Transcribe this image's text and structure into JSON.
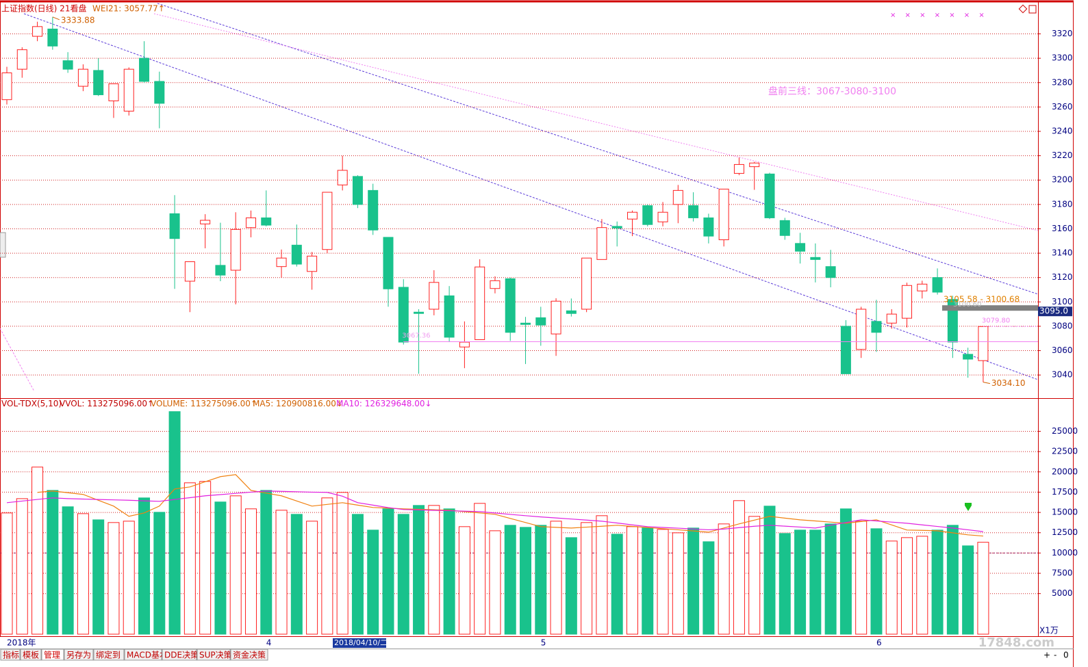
{
  "header": {
    "title": "上证指数(日线) 21看盘",
    "indicator": "WEI21: 3057.77↑",
    "marks": "× × × × × × ×"
  },
  "chart_data": [
    {
      "type": "candlestick",
      "open": [
        3266,
        3291,
        3318,
        3324,
        3298,
        3277,
        3290,
        3265,
        3256.6,
        3300,
        3281,
        3172.4,
        3117,
        3164,
        3130,
        3126,
        3161,
        3169,
        3129,
        3146.6,
        3125,
        3143,
        3196,
        3203,
        3191.5,
        3153,
        3112,
        3091.6,
        3094,
        3105,
        3063,
        3069,
        3111,
        3119,
        3082.6,
        3087,
        3073.7,
        3092.7,
        3094,
        3134.8,
        3162,
        3168,
        3179,
        3165.7,
        3180,
        3179,
        3169,
        3151,
        3205.5,
        3211,
        3205,
        3166.8,
        3148,
        3136.5,
        3129,
        3080,
        3061,
        3084,
        3082.6,
        3086.6,
        3109,
        3120,
        3102,
        3057,
        3051.8
      ],
      "high": [
        3293,
        3309,
        3330,
        3333.88,
        3305,
        3295,
        3300,
        3279,
        3292.5,
        3314,
        3289,
        3187.6,
        3133,
        3172,
        3165,
        3173.6,
        3175,
        3191.5,
        3143,
        3163.5,
        3141,
        3190,
        3220,
        3204,
        3197,
        3153,
        3118.6,
        3094,
        3126,
        3113,
        3084,
        3135,
        3121,
        3120,
        3087.7,
        3096,
        3103,
        3102.8,
        3136,
        3168,
        3166,
        3175,
        3180,
        3182,
        3196,
        3190,
        3172.4,
        3192.6,
        3218.5,
        3215,
        3206,
        3169,
        3156.7,
        3148,
        3142.7,
        3085,
        3096,
        3101.7,
        3094,
        3115.8,
        3117.4,
        3127.5,
        3105,
        3062.4,
        3079.8
      ],
      "low": [
        3262,
        3284,
        3314,
        3307,
        3288,
        3273,
        3269,
        3251,
        3253,
        3280,
        3242.5,
        3110.7,
        3091.6,
        3144,
        3117,
        3098,
        3153,
        3162,
        3120,
        3129,
        3110,
        3140,
        3191.5,
        3177,
        3155,
        3096,
        3065,
        3041,
        3089,
        3067,
        3045.6,
        3069,
        3107,
        3068,
        3049,
        3064,
        3055.7,
        3088,
        3091.6,
        3134.8,
        3145.5,
        3154,
        3162,
        3162,
        3164.6,
        3166,
        3148,
        3145.5,
        3204,
        3192,
        3168,
        3151,
        3131.5,
        3116,
        3112,
        3041,
        3054,
        3059,
        3078,
        3079,
        3102.8,
        3106,
        3054,
        3037.8,
        3034.1
      ],
      "close": [
        3288,
        3307,
        3326,
        3310,
        3291,
        3291,
        3270,
        3279,
        3291,
        3281,
        3263,
        3152,
        3133,
        3167,
        3122,
        3159.5,
        3169,
        3163,
        3136,
        3131,
        3137.6,
        3190,
        3208,
        3180,
        3159,
        3110.7,
        3067,
        3090.5,
        3116,
        3071,
        3067,
        3128.7,
        3117.4,
        3075,
        3081.5,
        3081,
        3100.6,
        3090.5,
        3136,
        3161,
        3160.6,
        3173.6,
        3163.5,
        3173.6,
        3191.5,
        3169,
        3154,
        3192.6,
        3212.8,
        3214,
        3169,
        3154.5,
        3141.6,
        3134.8,
        3120,
        3041,
        3094,
        3075,
        3090,
        3113.5,
        3114.6,
        3108,
        3067,
        3053,
        3079.8
      ],
      "up_color": "#ff2020",
      "down_color": "#19c28c",
      "ylim": [
        3021,
        3345
      ],
      "yticks": [
        3040,
        3060,
        3080,
        3100,
        3120,
        3140,
        3160,
        3180,
        3200,
        3220,
        3240,
        3260,
        3280,
        3300,
        3320
      ],
      "grid": true,
      "annotations": {
        "high": 3333.88,
        "low": {
          "value": 3034.1,
          "label": "3034.10"
        },
        "last": {
          "value": 3079.8,
          "label": "3079.80"
        },
        "line": 3067.36,
        "marker": {
          "value": 3095,
          "label": "3095.0"
        },
        "range_text": "3105.58 - 3100.68",
        "ghost_text": "3100.60",
        "note": "盘前三线：3067-3080-3100"
      }
    },
    {
      "type": "bar",
      "name": "VOL-TDX(5,10)",
      "header": "VVOL: 113275096.00↑",
      "categories": [
        "2018年",
        null,
        null,
        null,
        null,
        null,
        null,
        null,
        null,
        null,
        null,
        null,
        null,
        null,
        null,
        null,
        null,
        "4",
        null,
        null,
        null,
        null,
        null,
        null,
        null,
        null,
        null,
        null,
        null,
        null,
        null,
        null,
        null,
        null,
        null,
        "5",
        null,
        null,
        null,
        null,
        null,
        null,
        null,
        null,
        null,
        null,
        null,
        null,
        null,
        null,
        null,
        null,
        null,
        null,
        null,
        null,
        null,
        "6",
        null,
        null,
        null,
        null,
        null,
        null,
        null
      ],
      "series": [
        {
          "name": "VOLUME",
          "value_text": ": 113275096.00↑",
          "values": [
            14937,
            16700,
            20590,
            17720,
            15700,
            14850,
            14090,
            13755,
            13924,
            16793,
            15020,
            27426,
            18650,
            18820,
            16290,
            17046,
            15443,
            17720,
            15274,
            14768,
            13924,
            16793,
            17468,
            14768,
            12827,
            15443,
            14768,
            15865,
            15865,
            15443,
            13249,
            16118,
            12742,
            13418,
            13164,
            13418,
            13924,
            11899,
            13755,
            14599,
            12321,
            13249,
            13080,
            12911,
            12489,
            13080,
            11392,
            13586,
            16456,
            14515,
            15780,
            12405,
            12827,
            12827,
            13586,
            15443,
            13924,
            12996,
            11477,
            11899,
            12068,
            12827,
            13418,
            10886,
            11327.51
          ]
        },
        {
          "name": "MA5",
          "value_text": ": 120900816.00↓",
          "color": "#f08010",
          "values": [
            null,
            null,
            17470,
            17640,
            17430,
            17220,
            16500,
            15780,
            14520,
            14940,
            15780,
            17890,
            18140,
            18780,
            19410,
            19660,
            17720,
            17380,
            17050,
            16410,
            15780,
            15990,
            16200,
            15900,
            15610,
            15530,
            15440,
            15390,
            15330,
            15270,
            15100,
            14940,
            14770,
            14260,
            13760,
            13250,
            13160,
            13080,
            13190,
            13300,
            13420,
            13280,
            13140,
            13000,
            12860,
            12720,
            12570,
            13080,
            13590,
            14050,
            14520,
            14300,
            14090,
            13950,
            13810,
            13670,
            13880,
            14090,
            13460,
            12830,
            12790,
            12740,
            12490,
            12240,
            12090.08
          ]
        },
        {
          "name": "MA10",
          "value_text": ": 126329648.00↓",
          "color": "#e020e0",
          "values": [
            16200,
            16400,
            16600,
            16790,
            16700,
            16650,
            16600,
            16550,
            16500,
            16430,
            16370,
            16600,
            16820,
            17050,
            17200,
            17350,
            17500,
            17640,
            17600,
            17550,
            17500,
            17470,
            17000,
            16200,
            15900,
            15600,
            15360,
            15310,
            15260,
            15210,
            15160,
            15100,
            14930,
            14760,
            14600,
            14450,
            14320,
            14190,
            14060,
            13920,
            13700,
            13470,
            13250,
            13150,
            13060,
            12960,
            12860,
            12950,
            13130,
            13300,
            13420,
            13310,
            13200,
            13080,
            13420,
            13760,
            14090,
            13950,
            13810,
            13670,
            13470,
            13270,
            13080,
            12860,
            12632.96
          ]
        }
      ],
      "ylim": [
        0,
        29000
      ],
      "yticks": [
        5000,
        7500,
        10000,
        12500,
        15000,
        17500,
        20000,
        22500,
        25000
      ],
      "grid": true,
      "ref_line": 10000,
      "unit": "X1万",
      "cursor_label": "2018/04/10/二"
    }
  ],
  "tabs": [
    "指标",
    "模板",
    "管理",
    "另存为",
    "绑定到",
    "MACD基本",
    "DDE决策",
    "SUP决策",
    "资金决策"
  ],
  "watermark": "17848.com"
}
